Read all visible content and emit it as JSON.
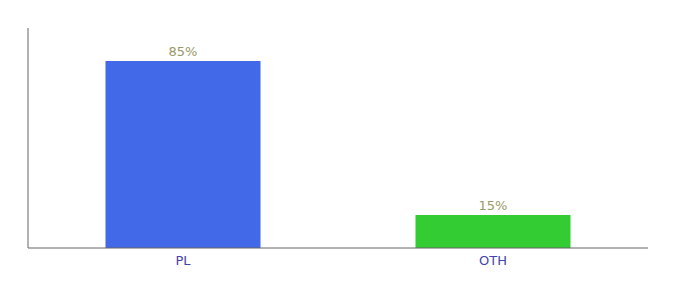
{
  "chart_data": {
    "type": "bar",
    "categories": [
      "PL",
      "OTH"
    ],
    "values": [
      85,
      15
    ],
    "value_labels": [
      "85%",
      "15%"
    ],
    "data_labels": true,
    "colors": [
      "#4169E8",
      "#33CC33"
    ],
    "ylim": [
      0,
      100
    ],
    "yticks": [],
    "tick_labels": "x"
  }
}
